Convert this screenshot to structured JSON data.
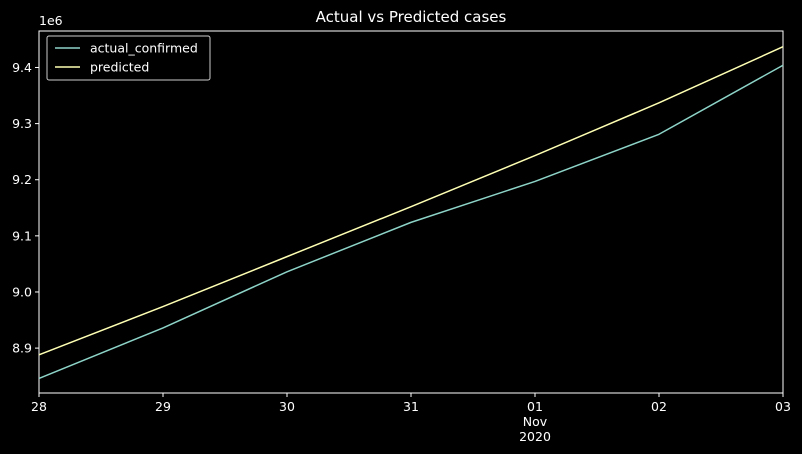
{
  "chart_data": {
    "type": "line",
    "title": "Actual vs Predicted cases",
    "xlabel": "",
    "ylabel": "",
    "y_offset_label": "1e6",
    "x_tick_labels": [
      "28",
      "29",
      "30",
      "31",
      "01",
      "02",
      "03"
    ],
    "x_tick_sublabels": {
      "month": "Nov",
      "year": "2020"
    },
    "x": [
      "2020-10-28",
      "2020-10-29",
      "2020-10-30",
      "2020-10-31",
      "2020-11-01",
      "2020-11-02",
      "2020-11-03"
    ],
    "ylim": [
      8.82,
      9.465
    ],
    "y_ticks": [
      8.9,
      9.0,
      9.1,
      9.2,
      9.3,
      9.4
    ],
    "y_tick_labels": [
      "8.9",
      "9.0",
      "9.1",
      "9.2",
      "9.3",
      "9.4"
    ],
    "grid": false,
    "legend_position": "top-left",
    "series": [
      {
        "name": "actual_confirmed",
        "color": "#8dd3c7",
        "values": [
          8.846,
          8.936,
          9.036,
          9.124,
          9.197,
          9.281,
          9.404
        ]
      },
      {
        "name": "predicted",
        "color": "#feffb3",
        "values": [
          8.888,
          8.974,
          9.063,
          9.152,
          9.243,
          9.337,
          9.437
        ]
      }
    ]
  }
}
